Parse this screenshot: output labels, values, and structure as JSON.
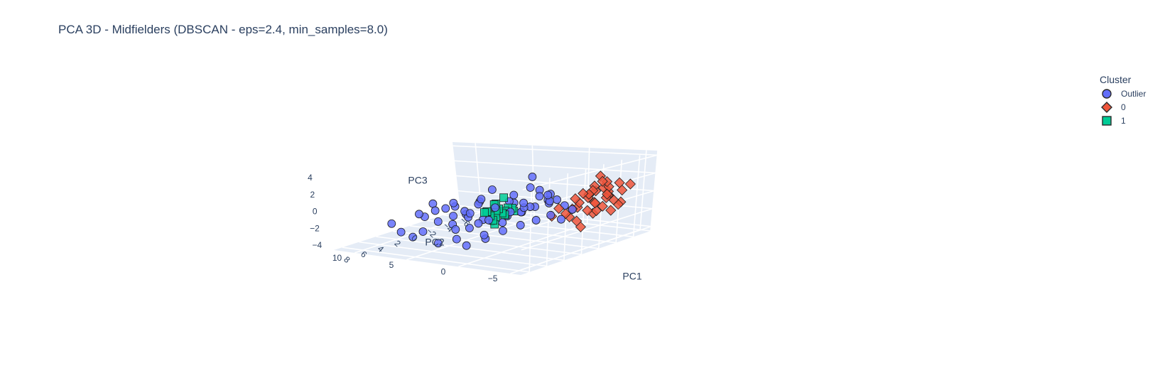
{
  "chart_data": {
    "type": "scatter",
    "title": "PCA 3D - Midfielders (DBSCAN - eps=2.4, min_samples=8.0)",
    "legend": {
      "title": "Cluster",
      "placement": "top-right"
    },
    "axes": {
      "x": {
        "label": "PC1",
        "range": [
          -6,
          9
        ],
        "ticks": [
          "8",
          "6",
          "4",
          "2",
          "0",
          "−2",
          "−4",
          "−6"
        ]
      },
      "y": {
        "label": "PC2",
        "range": [
          -6,
          12
        ],
        "ticks": [
          "−5",
          "0",
          "5",
          "10"
        ]
      },
      "z": {
        "label": "PC3",
        "range": [
          -4.5,
          4.5
        ],
        "ticks": [
          "4",
          "2",
          "0",
          "−2",
          "−4"
        ]
      }
    },
    "grid": true,
    "series": [
      {
        "name": "Outlier",
        "symbol": "circle",
        "color": "#636efa",
        "points": [
          [
            4.2,
            -3.0,
            4.0
          ],
          [
            3.6,
            -3.2,
            1.8
          ],
          [
            3.1,
            -2.8,
            2.3
          ],
          [
            4.6,
            -2.6,
            0.8
          ],
          [
            2.8,
            -3.5,
            1.1
          ],
          [
            5.0,
            1.0,
            1.5
          ],
          [
            5.3,
            2.0,
            -0.5
          ],
          [
            6.0,
            3.5,
            0.5
          ],
          [
            6.8,
            4.0,
            1.2
          ],
          [
            7.2,
            4.5,
            -0.2
          ],
          [
            7.8,
            3.0,
            0.8
          ],
          [
            6.5,
            2.5,
            -1.0
          ],
          [
            5.8,
            1.5,
            -1.5
          ],
          [
            4.8,
            0.5,
            -0.8
          ],
          [
            3.9,
            -0.5,
            -0.5
          ],
          [
            3.2,
            -1.2,
            -0.2
          ],
          [
            2.6,
            -2.0,
            0.3
          ],
          [
            2.0,
            -2.8,
            0.6
          ],
          [
            1.6,
            -3.2,
            0.9
          ],
          [
            1.2,
            -3.6,
            0.2
          ],
          [
            0.8,
            -4.0,
            -0.3
          ],
          [
            1.4,
            -2.5,
            -0.9
          ],
          [
            2.2,
            -1.8,
            -1.3
          ],
          [
            3.0,
            -1.0,
            -1.7
          ],
          [
            3.8,
            0.0,
            -2.2
          ],
          [
            4.5,
            1.2,
            -2.6
          ],
          [
            5.5,
            3.0,
            -3.0
          ],
          [
            6.2,
            4.2,
            -3.4
          ],
          [
            5.0,
            2.5,
            -3.8
          ],
          [
            4.0,
            1.5,
            -3.2
          ],
          [
            7.5,
            5.5,
            -2.5
          ],
          [
            8.2,
            6.0,
            -1.8
          ],
          [
            8.6,
            6.5,
            -0.8
          ],
          [
            6.9,
            5.0,
            -2.0
          ],
          [
            4.4,
            -1.5,
            2.0
          ],
          [
            5.6,
            -0.5,
            2.8
          ],
          [
            3.4,
            -2.2,
            2.6
          ],
          [
            2.4,
            -3.0,
            1.6
          ],
          [
            1.8,
            -3.8,
            -1.1
          ],
          [
            2.9,
            0.5,
            -0.4
          ],
          [
            3.5,
            1.0,
            0.2
          ],
          [
            4.1,
            2.0,
            0.6
          ],
          [
            4.7,
            2.8,
            -0.1
          ],
          [
            5.2,
            3.4,
            0.9
          ],
          [
            2.5,
            0.0,
            0.5
          ],
          [
            1.9,
            -1.0,
            0.0
          ],
          [
            3.3,
            -0.2,
            0.9
          ],
          [
            4.0,
            0.8,
            -1.2
          ],
          [
            6.3,
            1.0,
            0.3
          ],
          [
            7.0,
            2.0,
            0.1
          ],
          [
            5.9,
            -1.0,
            1.0
          ],
          [
            5.4,
            -2.0,
            0.5
          ],
          [
            4.9,
            -2.8,
            1.4
          ],
          [
            6.6,
            0.0,
            -0.6
          ],
          [
            7.4,
            1.5,
            -1.2
          ],
          [
            3.0,
            2.5,
            -1.5
          ],
          [
            2.0,
            1.5,
            -2.0
          ],
          [
            1.0,
            0.5,
            -1.0
          ],
          [
            0.5,
            -1.5,
            0.4
          ],
          [
            1.1,
            -2.2,
            1.3
          ],
          [
            3.7,
            3.5,
            -0.8
          ],
          [
            2.7,
            3.0,
            0.4
          ],
          [
            4.3,
            4.0,
            0.2
          ],
          [
            5.1,
            5.0,
            -1.4
          ],
          [
            6.0,
            6.0,
            -0.4
          ]
        ]
      },
      {
        "name": "0",
        "symbol": "diamond",
        "color": "#ef553b",
        "points": [
          [
            -1.0,
            -4.5,
            1.8
          ],
          [
            -1.5,
            -4.8,
            2.2
          ],
          [
            -2.0,
            -5.0,
            1.5
          ],
          [
            -2.5,
            -4.6,
            0.8
          ],
          [
            -3.0,
            -4.2,
            0.2
          ],
          [
            -1.8,
            -4.0,
            1.0
          ],
          [
            -1.2,
            -3.8,
            0.4
          ],
          [
            -0.6,
            -3.5,
            0.0
          ],
          [
            -0.2,
            -3.2,
            -0.6
          ],
          [
            0.3,
            -3.0,
            -1.0
          ],
          [
            -2.2,
            -3.6,
            -0.4
          ],
          [
            -2.8,
            -3.9,
            -1.0
          ],
          [
            -3.4,
            -4.4,
            -0.4
          ],
          [
            -3.8,
            -4.8,
            0.6
          ],
          [
            -4.2,
            -5.2,
            1.2
          ],
          [
            -1.4,
            -4.3,
            -0.2
          ],
          [
            -0.9,
            -4.1,
            0.9
          ],
          [
            -2.4,
            -4.5,
            1.9
          ],
          [
            -1.7,
            -3.4,
            -1.2
          ],
          [
            -0.4,
            -2.8,
            -1.6
          ],
          [
            0.0,
            -3.6,
            0.6
          ],
          [
            -0.7,
            -4.6,
            1.4
          ],
          [
            -3.2,
            -5.0,
            1.6
          ],
          [
            -2.6,
            -3.2,
            -1.8
          ],
          [
            -1.0,
            -3.0,
            -2.2
          ],
          [
            -1.9,
            -4.9,
            0.3
          ],
          [
            -3.6,
            -3.8,
            0.0
          ],
          [
            -2.0,
            -4.2,
            2.6
          ],
          [
            0.6,
            -2.6,
            -0.4
          ],
          [
            -1.3,
            -2.8,
            -0.8
          ],
          [
            -2.9,
            -4.6,
            -1.4
          ],
          [
            -4.0,
            -4.6,
            -0.8
          ],
          [
            -0.1,
            -4.2,
            1.2
          ],
          [
            -1.6,
            -5.2,
            0.8
          ],
          [
            -3.3,
            -3.5,
            0.9
          ],
          [
            -2.3,
            -3.0,
            0.3
          ],
          [
            0.9,
            -2.2,
            -1.2
          ],
          [
            -0.5,
            -3.8,
            -2.6
          ],
          [
            -2.7,
            -5.4,
            -0.6
          ],
          [
            -1.1,
            -4.7,
            -0.9
          ]
        ]
      },
      {
        "name": "1",
        "symbol": "square",
        "color": "#00cc96",
        "points": [
          [
            4.5,
            -0.5,
            0.0
          ],
          [
            4.8,
            -0.2,
            0.3
          ],
          [
            5.1,
            0.1,
            -0.2
          ],
          [
            4.2,
            -0.8,
            0.5
          ],
          [
            3.9,
            -1.1,
            0.1
          ],
          [
            5.4,
            0.4,
            0.2
          ],
          [
            4.6,
            0.0,
            -0.5
          ],
          [
            4.0,
            -0.4,
            -0.3
          ],
          [
            5.0,
            -0.6,
            0.6
          ],
          [
            4.4,
            0.3,
            0.8
          ],
          [
            5.3,
            -0.3,
            -0.6
          ],
          [
            3.8,
            -0.2,
            0.0
          ],
          [
            4.7,
            -0.9,
            -0.1
          ],
          [
            5.6,
            0.0,
            0.4
          ],
          [
            4.1,
            0.5,
            -0.4
          ],
          [
            4.9,
            0.6,
            0.1
          ],
          [
            4.3,
            -0.5,
            1.6
          ],
          [
            4.7,
            -0.1,
            1.0
          ],
          [
            4.5,
            0.2,
            -1.3
          ],
          [
            3.6,
            -0.7,
            0.3
          ]
        ]
      }
    ]
  }
}
